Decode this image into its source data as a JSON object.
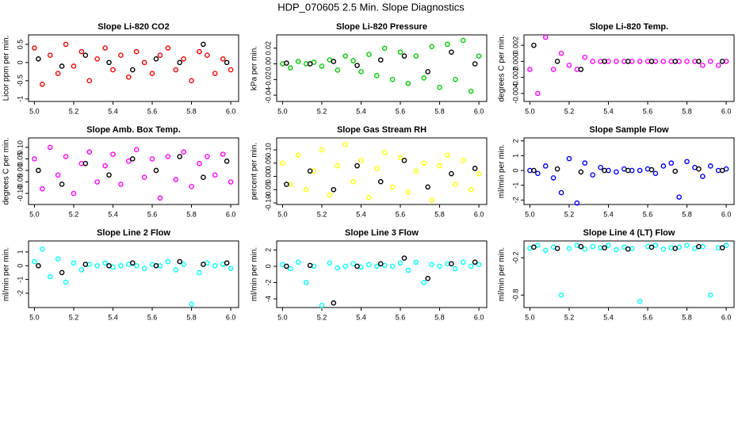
{
  "title": "HDP_070605  2.5 Min. Slope Diagnostics",
  "chart_data": [
    {
      "type": "scatter",
      "title": "Slope Li-820 CO2",
      "ylabel": "Licor ppm per min.",
      "xlim": [
        4.97,
        6.04
      ],
      "xticks": [
        {
          "value": 5.0,
          "label": "5.0"
        },
        5.2,
        5.4,
        5.6,
        5.8,
        {
          "value": 6.0,
          "label": "6.0"
        }
      ],
      "ylim": [
        -1.07,
        0.76
      ],
      "yticks": [
        -1,
        -0.5,
        0,
        0.5
      ],
      "series": [
        {
          "color": "#ff0000",
          "x": [
            5.0,
            5.04,
            5.08,
            5.12,
            5.16,
            5.2,
            5.24,
            5.28,
            5.32,
            5.36,
            5.4,
            5.44,
            5.48,
            5.52,
            5.56,
            5.6,
            5.64,
            5.68,
            5.72,
            5.76,
            5.8,
            5.84,
            5.88,
            5.92,
            5.96,
            6.0
          ],
          "values": [
            0.4,
            -0.6,
            0.2,
            -0.3,
            0.5,
            -0.1,
            0.3,
            -0.5,
            0.1,
            0.4,
            -0.2,
            0.2,
            -0.4,
            0.3,
            0,
            -0.3,
            0.2,
            0.4,
            -0.2,
            0.1,
            -0.5,
            0.3,
            0.2,
            -0.3,
            0.1,
            -0.2
          ]
        },
        {
          "color": "#000000",
          "x": [
            5.02,
            5.14,
            5.26,
            5.38,
            5.5,
            5.62,
            5.74,
            5.86,
            5.98
          ],
          "values": [
            0.1,
            -0.1,
            0.2,
            0,
            -0.2,
            0.1,
            0,
            0.5,
            0
          ]
        }
      ]
    },
    {
      "type": "scatter",
      "title": "Slope Li-820 Pressure",
      "ylabel": "kPa per min.",
      "xlim": [
        4.97,
        6.04
      ],
      "xticks": [
        {
          "value": 5.0,
          "label": "5.0"
        },
        5.2,
        5.4,
        5.6,
        5.8,
        {
          "value": 6.0,
          "label": "6.0"
        }
      ],
      "ylim": [
        -0.048,
        0.037
      ],
      "yticks": [
        -0.04,
        -0.02,
        {
          "value": 0,
          "label": "0.00"
        },
        0.02
      ],
      "series": [
        {
          "color": "#00cc00",
          "x": [
            5.0,
            5.04,
            5.08,
            5.12,
            5.16,
            5.2,
            5.24,
            5.28,
            5.32,
            5.36,
            5.4,
            5.44,
            5.48,
            5.52,
            5.56,
            5.6,
            5.64,
            5.68,
            5.72,
            5.76,
            5.8,
            5.84,
            5.88,
            5.92,
            5.96,
            6.0
          ],
          "values": [
            0,
            -0.005,
            0.003,
            0,
            0.002,
            -0.003,
            0.005,
            -0.008,
            0.01,
            0.004,
            -0.01,
            0.012,
            -0.015,
            0.02,
            -0.02,
            0.015,
            -0.025,
            0.01,
            -0.018,
            0.022,
            -0.03,
            0.025,
            -0.02,
            0.03,
            -0.035,
            0.01
          ]
        },
        {
          "color": "#000000",
          "x": [
            5.02,
            5.14,
            5.26,
            5.38,
            5.5,
            5.62,
            5.74,
            5.86,
            5.98
          ],
          "values": [
            0.001,
            0,
            0.003,
            -0.002,
            0.005,
            0.01,
            -0.01,
            0.015,
            0
          ]
        }
      ]
    },
    {
      "type": "scatter",
      "title": "Slope Li-820 Temp.",
      "ylabel": "degrees C per min.",
      "xlim": [
        4.97,
        6.04
      ],
      "xticks": [
        {
          "value": 5.0,
          "label": "5.0"
        },
        5.2,
        5.4,
        5.6,
        5.8,
        {
          "value": 6.0,
          "label": "6.0"
        }
      ],
      "ylim": [
        -0.005,
        0.0033
      ],
      "yticks": [
        -0.004,
        -0.002,
        {
          "value": 0,
          "label": "0.000"
        },
        0.002
      ],
      "series": [
        {
          "color": "#ff00ff",
          "x": [
            5.0,
            5.04,
            5.08,
            5.12,
            5.16,
            5.2,
            5.24,
            5.28,
            5.32,
            5.36,
            5.4,
            5.44,
            5.48,
            5.52,
            5.56,
            5.6,
            5.64,
            5.68,
            5.72,
            5.76,
            5.8,
            5.84,
            5.88,
            5.92,
            5.96,
            6.0
          ],
          "values": [
            -0.001,
            -0.004,
            0.003,
            -0.001,
            0.001,
            -0.0005,
            -0.001,
            0.0005,
            0,
            0,
            0,
            0,
            0,
            0,
            0,
            0,
            0,
            0,
            0,
            0,
            0,
            0,
            -0.0005,
            0,
            -0.0005,
            0
          ]
        },
        {
          "color": "#000000",
          "x": [
            5.02,
            5.14,
            5.26,
            5.38,
            5.5,
            5.62,
            5.74,
            5.86,
            5.98
          ],
          "values": [
            0.002,
            0,
            -0.001,
            0,
            0,
            0,
            0,
            0,
            0
          ]
        }
      ]
    },
    {
      "type": "scatter",
      "title": "Slope Amb. Box Temp.",
      "ylabel": "degrees C per min.",
      "xlim": [
        4.97,
        6.04
      ],
      "xticks": [
        {
          "value": 5.0,
          "label": "5.0"
        },
        5.2,
        5.4,
        5.6,
        5.8,
        {
          "value": 6.0,
          "label": "6.0"
        }
      ],
      "ylim": [
        -0.148,
        0.141
      ],
      "yticks": [
        {
          "value": -0.1,
          "label": "-0.10"
        },
        -0.05,
        {
          "value": 0,
          "label": "0.00"
        },
        0.05,
        {
          "value": 0.1,
          "label": "0.10"
        }
      ],
      "series": [
        {
          "color": "#ff00ff",
          "x": [
            5.0,
            5.04,
            5.08,
            5.12,
            5.16,
            5.2,
            5.24,
            5.28,
            5.32,
            5.36,
            5.4,
            5.44,
            5.48,
            5.52,
            5.56,
            5.6,
            5.64,
            5.68,
            5.72,
            5.76,
            5.8,
            5.84,
            5.88,
            5.92,
            5.96,
            6.0
          ],
          "values": [
            0.05,
            -0.08,
            0.1,
            -0.02,
            0.06,
            -0.1,
            0.03,
            0.08,
            -0.05,
            0.02,
            0.07,
            -0.06,
            0.04,
            0.09,
            -0.03,
            0.05,
            -0.12,
            0.06,
            -0.04,
            0.08,
            -0.07,
            0.03,
            0.06,
            -0.02,
            0.07,
            -0.05
          ]
        },
        {
          "color": "#000000",
          "x": [
            5.02,
            5.14,
            5.26,
            5.38,
            5.5,
            5.62,
            5.74,
            5.86,
            5.98
          ],
          "values": [
            0,
            -0.06,
            0.03,
            -0.02,
            0.05,
            0,
            0.06,
            -0.03,
            0.04
          ]
        }
      ]
    },
    {
      "type": "scatter",
      "title": "Slope Gas Stream RH",
      "ylabel": "percent per min.",
      "xlim": [
        4.97,
        6.04
      ],
      "xticks": [
        {
          "value": 5.0,
          "label": "5.0"
        },
        5.2,
        5.4,
        5.6,
        5.8,
        {
          "value": 6.0,
          "label": "6.0"
        }
      ],
      "ylim": [
        -0.106,
        0.145
      ],
      "yticks": [
        {
          "value": -0.1,
          "label": "-0.10"
        },
        -0.05,
        {
          "value": 0,
          "label": "0.00"
        },
        0.05,
        {
          "value": 0.1,
          "label": "0.10"
        }
      ],
      "series": [
        {
          "color": "#ffff00",
          "x": [
            5.0,
            5.04,
            5.08,
            5.12,
            5.16,
            5.2,
            5.24,
            5.28,
            5.32,
            5.36,
            5.4,
            5.44,
            5.48,
            5.52,
            5.56,
            5.6,
            5.64,
            5.68,
            5.72,
            5.76,
            5.8,
            5.84,
            5.88,
            5.92,
            5.96,
            6.0
          ],
          "values": [
            0.05,
            -0.03,
            0.08,
            -0.05,
            0.02,
            0.1,
            -0.07,
            0.04,
            0.12,
            -0.02,
            0.06,
            -0.08,
            0.03,
            0.09,
            -0.04,
            0.07,
            -0.06,
            0.02,
            0.05,
            -0.09,
            0.04,
            0.08,
            -0.03,
            0.06,
            -0.05,
            0.01
          ]
        },
        {
          "color": "#000000",
          "x": [
            5.02,
            5.14,
            5.26,
            5.38,
            5.5,
            5.62,
            5.74,
            5.86,
            5.98
          ],
          "values": [
            -0.03,
            0.02,
            -0.05,
            0.04,
            -0.02,
            0.06,
            -0.04,
            0.01,
            0.03
          ]
        }
      ]
    },
    {
      "type": "scatter",
      "title": "Slope Sample Flow",
      "ylabel": "ml/min per min.",
      "xlim": [
        4.97,
        6.04
      ],
      "xticks": [
        {
          "value": 5.0,
          "label": "5.0"
        },
        5.2,
        5.4,
        5.6,
        5.8,
        {
          "value": 6.0,
          "label": "6.0"
        }
      ],
      "ylim": [
        -2.3,
        2.2
      ],
      "yticks": [
        -2,
        -1,
        0,
        1,
        2
      ],
      "series": [
        {
          "color": "#0000ff",
          "x": [
            5.0,
            5.04,
            5.08,
            5.12,
            5.16,
            5.2,
            5.24,
            5.28,
            5.32,
            5.36,
            5.4,
            5.44,
            5.48,
            5.52,
            5.56,
            5.6,
            5.64,
            5.68,
            5.72,
            5.76,
            5.8,
            5.84,
            5.88,
            5.92,
            5.96,
            6.0
          ],
          "values": [
            0,
            -0.2,
            0.3,
            -0.5,
            -1.5,
            0.8,
            -2.2,
            0.5,
            -0.3,
            0.2,
            0,
            -0.1,
            0.1,
            0,
            0,
            0.1,
            -0.2,
            0.3,
            0.5,
            -1.8,
            0.6,
            0.2,
            -0.4,
            0.3,
            0,
            0.1
          ]
        },
        {
          "color": "#000000",
          "x": [
            5.02,
            5.14,
            5.26,
            5.38,
            5.5,
            5.62,
            5.74,
            5.86,
            5.98
          ],
          "values": [
            0,
            0.1,
            -0.1,
            0,
            0,
            0.05,
            -0.05,
            0.1,
            0
          ]
        }
      ]
    },
    {
      "type": "scatter",
      "title": "Slope Line 2 Flow",
      "ylabel": "ml/min per min.",
      "xlim": [
        4.97,
        6.04
      ],
      "xticks": [
        {
          "value": 5.0,
          "label": "5.0"
        },
        5.2,
        5.4,
        5.6,
        5.8,
        {
          "value": 6.0,
          "label": "6.0"
        }
      ],
      "ylim": [
        -3.04,
        1.8
      ],
      "yticks": [
        -2,
        -1,
        0,
        1
      ],
      "series": [
        {
          "color": "#00ffff",
          "x": [
            5.0,
            5.04,
            5.08,
            5.12,
            5.16,
            5.2,
            5.24,
            5.28,
            5.32,
            5.36,
            5.4,
            5.44,
            5.48,
            5.52,
            5.56,
            5.6,
            5.64,
            5.68,
            5.72,
            5.76,
            5.8,
            5.84,
            5.88,
            5.92,
            5.96,
            6.0
          ],
          "values": [
            0.3,
            1.2,
            -0.8,
            0.5,
            -1.2,
            0.2,
            -0.3,
            0.1,
            0,
            0.2,
            -0.1,
            0,
            0.1,
            0,
            -0.2,
            0.1,
            0,
            0.3,
            -0.3,
            0.1,
            -2.8,
            -0.5,
            0.2,
            0,
            0.1,
            -0.2
          ]
        },
        {
          "color": "#000000",
          "x": [
            5.02,
            5.14,
            5.26,
            5.38,
            5.5,
            5.62,
            5.74,
            5.86,
            5.98
          ],
          "values": [
            0,
            -0.5,
            0.1,
            0,
            0.2,
            0,
            0.3,
            0.1,
            0.2
          ]
        }
      ]
    },
    {
      "type": "scatter",
      "title": "Slope Line 3 Flow",
      "ylabel": "ml/min per min.",
      "xlim": [
        4.97,
        6.04
      ],
      "xticks": [
        {
          "value": 5.0,
          "label": "5.0"
        },
        5.2,
        5.4,
        5.6,
        5.8,
        {
          "value": 6.0,
          "label": "6.0"
        }
      ],
      "ylim": [
        -5.06,
        3.1
      ],
      "yticks": [
        -4,
        -2,
        0,
        2
      ],
      "series": [
        {
          "color": "#00ffff",
          "x": [
            5.0,
            5.04,
            5.08,
            5.12,
            5.16,
            5.2,
            5.24,
            5.28,
            5.32,
            5.36,
            5.4,
            5.44,
            5.48,
            5.52,
            5.56,
            5.6,
            5.64,
            5.68,
            5.72,
            5.76,
            5.8,
            5.84,
            5.88,
            5.92,
            5.96,
            6.0
          ],
          "values": [
            0.2,
            -0.3,
            0.5,
            -2,
            0,
            -4.8,
            0.4,
            -0.2,
            0,
            0.3,
            -0.1,
            0.2,
            0,
            0.1,
            0,
            0.4,
            -0.5,
            0.5,
            -2,
            0.2,
            0,
            0.3,
            -0.3,
            0.5,
            0,
            0.2
          ]
        },
        {
          "color": "#000000",
          "x": [
            5.02,
            5.14,
            5.26,
            5.38,
            5.5,
            5.62,
            5.74,
            5.86,
            5.98
          ],
          "values": [
            0,
            0.1,
            -4.5,
            0,
            0.3,
            1,
            -1.5,
            0.3,
            0.5
          ]
        }
      ]
    },
    {
      "type": "scatter",
      "title": "Slope Line 4 (LT) Flow",
      "ylabel": "ml/min per min.",
      "xlim": [
        4.97,
        6.04
      ],
      "xticks": [
        {
          "value": 5.0,
          "label": "5.0"
        },
        5.2,
        5.4,
        5.6,
        5.8,
        {
          "value": 6.0,
          "label": "6.0"
        }
      ],
      "ylim": [
        -1.0,
        0.07
      ],
      "yticks": [
        -0.8,
        -0.2
      ],
      "series": [
        {
          "color": "#00ffff",
          "x": [
            5.0,
            5.04,
            5.08,
            5.12,
            5.16,
            5.2,
            5.24,
            5.28,
            5.32,
            5.36,
            5.4,
            5.44,
            5.48,
            5.52,
            5.56,
            5.6,
            5.64,
            5.68,
            5.72,
            5.76,
            5.8,
            5.84,
            5.88,
            5.92,
            5.96,
            6.0
          ],
          "values": [
            -0.05,
            0,
            -0.08,
            -0.03,
            -0.8,
            -0.05,
            0,
            -0.06,
            -0.02,
            -0.04,
            0,
            -0.07,
            -0.03,
            -0.05,
            -0.9,
            -0.02,
            0,
            -0.06,
            -0.04,
            -0.03,
            0,
            -0.05,
            -0.02,
            -0.8,
            -0.04,
            0
          ]
        },
        {
          "color": "#000000",
          "x": [
            5.02,
            5.14,
            5.26,
            5.38,
            5.5,
            5.62,
            5.74,
            5.86,
            5.98
          ],
          "values": [
            -0.03,
            -0.05,
            -0.02,
            -0.04,
            -0.06,
            -0.03,
            -0.05,
            -0.02,
            -0.04
          ]
        }
      ]
    }
  ]
}
